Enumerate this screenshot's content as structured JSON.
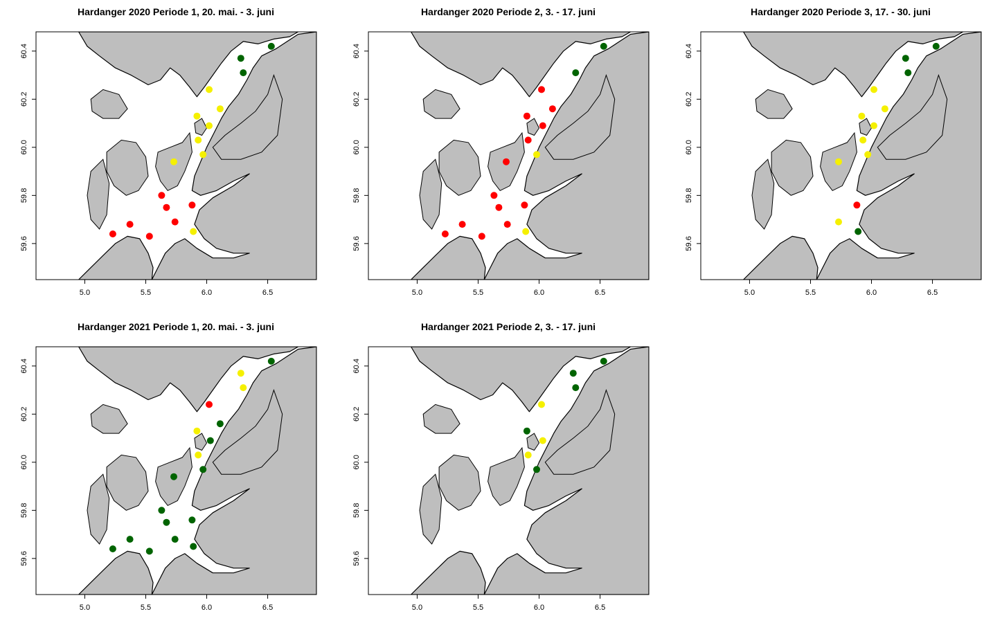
{
  "colors": {
    "red": "#ff0000",
    "yellow": "#f5f000",
    "green": "#006400",
    "land": "#bebebe",
    "sea": "#ffffff"
  },
  "chart_data": [
    {
      "type": "scatter",
      "title": "Hardanger 2020 Periode 1, 20. mai. - 3. juni",
      "xlim": [
        4.6,
        6.9
      ],
      "ylim": [
        59.45,
        60.48
      ],
      "xticks": [
        "5.0",
        "5.5",
        "6.0",
        "6.5"
      ],
      "yticks": [
        "59.6",
        "59.8",
        "60.0",
        "60.2",
        "60.4"
      ],
      "points": [
        {
          "x": 6.53,
          "y": 60.42,
          "status": "green"
        },
        {
          "x": 6.28,
          "y": 60.37,
          "status": "green"
        },
        {
          "x": 6.3,
          "y": 60.31,
          "status": "green"
        },
        {
          "x": 6.02,
          "y": 60.24,
          "status": "yellow"
        },
        {
          "x": 6.11,
          "y": 60.16,
          "status": "yellow"
        },
        {
          "x": 5.92,
          "y": 60.13,
          "status": "yellow"
        },
        {
          "x": 6.02,
          "y": 60.09,
          "status": "yellow"
        },
        {
          "x": 5.93,
          "y": 60.03,
          "status": "yellow"
        },
        {
          "x": 5.97,
          "y": 59.97,
          "status": "yellow"
        },
        {
          "x": 5.73,
          "y": 59.94,
          "status": "yellow"
        },
        {
          "x": 5.63,
          "y": 59.8,
          "status": "red"
        },
        {
          "x": 5.67,
          "y": 59.75,
          "status": "red"
        },
        {
          "x": 5.88,
          "y": 59.76,
          "status": "red"
        },
        {
          "x": 5.74,
          "y": 59.69,
          "status": "red"
        },
        {
          "x": 5.37,
          "y": 59.68,
          "status": "red"
        },
        {
          "x": 5.23,
          "y": 59.64,
          "status": "red"
        },
        {
          "x": 5.53,
          "y": 59.63,
          "status": "red"
        },
        {
          "x": 5.89,
          "y": 59.65,
          "status": "yellow"
        }
      ]
    },
    {
      "type": "scatter",
      "title": "Hardanger 2020 Periode 2, 3. - 17. juni",
      "xlim": [
        4.6,
        6.9
      ],
      "ylim": [
        59.45,
        60.48
      ],
      "xticks": [
        "5.0",
        "5.5",
        "6.0",
        "6.5"
      ],
      "yticks": [
        "59.6",
        "59.8",
        "60.0",
        "60.2",
        "60.4"
      ],
      "points": [
        {
          "x": 6.53,
          "y": 60.42,
          "status": "green"
        },
        {
          "x": 6.3,
          "y": 60.31,
          "status": "green"
        },
        {
          "x": 6.02,
          "y": 60.24,
          "status": "red"
        },
        {
          "x": 6.11,
          "y": 60.16,
          "status": "red"
        },
        {
          "x": 5.9,
          "y": 60.13,
          "status": "red"
        },
        {
          "x": 6.03,
          "y": 60.09,
          "status": "red"
        },
        {
          "x": 5.91,
          "y": 60.03,
          "status": "red"
        },
        {
          "x": 5.98,
          "y": 59.97,
          "status": "yellow"
        },
        {
          "x": 5.73,
          "y": 59.94,
          "status": "red"
        },
        {
          "x": 5.63,
          "y": 59.8,
          "status": "red"
        },
        {
          "x": 5.67,
          "y": 59.75,
          "status": "red"
        },
        {
          "x": 5.88,
          "y": 59.76,
          "status": "red"
        },
        {
          "x": 5.74,
          "y": 59.68,
          "status": "red"
        },
        {
          "x": 5.37,
          "y": 59.68,
          "status": "red"
        },
        {
          "x": 5.23,
          "y": 59.64,
          "status": "red"
        },
        {
          "x": 5.53,
          "y": 59.63,
          "status": "red"
        },
        {
          "x": 5.89,
          "y": 59.65,
          "status": "yellow"
        }
      ]
    },
    {
      "type": "scatter",
      "title": "Hardanger 2020 Periode 3, 17. - 30. juni",
      "xlim": [
        4.6,
        6.9
      ],
      "ylim": [
        59.45,
        60.48
      ],
      "xticks": [
        "5.0",
        "5.5",
        "6.0",
        "6.5"
      ],
      "yticks": [
        "59.6",
        "59.8",
        "60.0",
        "60.2",
        "60.4"
      ],
      "points": [
        {
          "x": 6.53,
          "y": 60.42,
          "status": "green"
        },
        {
          "x": 6.28,
          "y": 60.37,
          "status": "green"
        },
        {
          "x": 6.3,
          "y": 60.31,
          "status": "green"
        },
        {
          "x": 6.02,
          "y": 60.24,
          "status": "yellow"
        },
        {
          "x": 6.11,
          "y": 60.16,
          "status": "yellow"
        },
        {
          "x": 5.92,
          "y": 60.13,
          "status": "yellow"
        },
        {
          "x": 6.02,
          "y": 60.09,
          "status": "yellow"
        },
        {
          "x": 5.93,
          "y": 60.03,
          "status": "yellow"
        },
        {
          "x": 5.97,
          "y": 59.97,
          "status": "yellow"
        },
        {
          "x": 5.73,
          "y": 59.94,
          "status": "yellow"
        },
        {
          "x": 5.88,
          "y": 59.76,
          "status": "red"
        },
        {
          "x": 5.73,
          "y": 59.69,
          "status": "yellow"
        },
        {
          "x": 5.89,
          "y": 59.65,
          "status": "green"
        }
      ]
    },
    {
      "type": "scatter",
      "title": "Hardanger 2021 Periode 1, 20. mai. - 3. juni",
      "xlim": [
        4.6,
        6.9
      ],
      "ylim": [
        59.45,
        60.48
      ],
      "xticks": [
        "5.0",
        "5.5",
        "6.0",
        "6.5"
      ],
      "yticks": [
        "59.6",
        "59.8",
        "60.0",
        "60.2",
        "60.4"
      ],
      "points": [
        {
          "x": 6.53,
          "y": 60.42,
          "status": "green"
        },
        {
          "x": 6.28,
          "y": 60.37,
          "status": "yellow"
        },
        {
          "x": 6.3,
          "y": 60.31,
          "status": "yellow"
        },
        {
          "x": 6.02,
          "y": 60.24,
          "status": "red"
        },
        {
          "x": 6.11,
          "y": 60.16,
          "status": "green"
        },
        {
          "x": 5.92,
          "y": 60.13,
          "status": "yellow"
        },
        {
          "x": 6.03,
          "y": 60.09,
          "status": "green"
        },
        {
          "x": 5.93,
          "y": 60.03,
          "status": "yellow"
        },
        {
          "x": 5.97,
          "y": 59.97,
          "status": "green"
        },
        {
          "x": 5.73,
          "y": 59.94,
          "status": "green"
        },
        {
          "x": 5.63,
          "y": 59.8,
          "status": "green"
        },
        {
          "x": 5.67,
          "y": 59.75,
          "status": "green"
        },
        {
          "x": 5.88,
          "y": 59.76,
          "status": "green"
        },
        {
          "x": 5.74,
          "y": 59.68,
          "status": "green"
        },
        {
          "x": 5.37,
          "y": 59.68,
          "status": "green"
        },
        {
          "x": 5.23,
          "y": 59.64,
          "status": "green"
        },
        {
          "x": 5.53,
          "y": 59.63,
          "status": "green"
        },
        {
          "x": 5.89,
          "y": 59.65,
          "status": "green"
        }
      ]
    },
    {
      "type": "scatter",
      "title": "Hardanger 2021 Periode 2, 3. - 17. juni",
      "xlim": [
        4.6,
        6.9
      ],
      "ylim": [
        59.45,
        60.48
      ],
      "xticks": [
        "5.0",
        "5.5",
        "6.0",
        "6.5"
      ],
      "yticks": [
        "59.6",
        "59.8",
        "60.0",
        "60.2",
        "60.4"
      ],
      "points": [
        {
          "x": 6.53,
          "y": 60.42,
          "status": "green"
        },
        {
          "x": 6.28,
          "y": 60.37,
          "status": "green"
        },
        {
          "x": 6.3,
          "y": 60.31,
          "status": "green"
        },
        {
          "x": 6.02,
          "y": 60.24,
          "status": "yellow"
        },
        {
          "x": 5.9,
          "y": 60.13,
          "status": "green"
        },
        {
          "x": 6.03,
          "y": 60.09,
          "status": "yellow"
        },
        {
          "x": 5.91,
          "y": 60.03,
          "status": "yellow"
        },
        {
          "x": 5.98,
          "y": 59.97,
          "status": "green"
        }
      ]
    }
  ]
}
